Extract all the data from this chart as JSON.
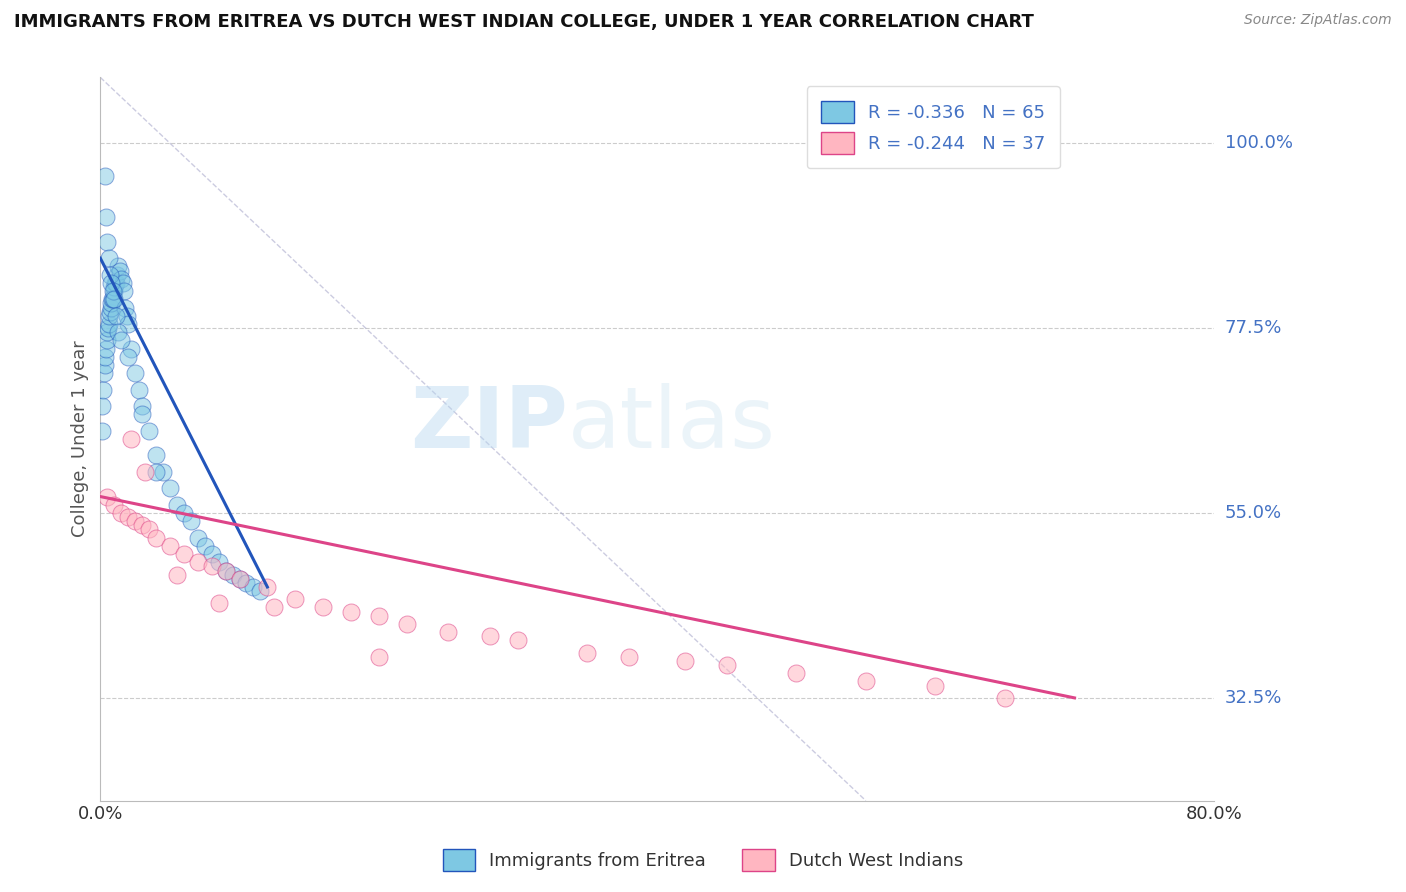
{
  "title": "IMMIGRANTS FROM ERITREA VS DUTCH WEST INDIAN COLLEGE, UNDER 1 YEAR CORRELATION CHART",
  "source_text": "Source: ZipAtlas.com",
  "ylabel": "College, Under 1 year",
  "xlim": [
    0.0,
    80.0
  ],
  "ylim": [
    20.0,
    108.0
  ],
  "ytick_labels": [
    "32.5%",
    "55.0%",
    "77.5%",
    "100.0%"
  ],
  "ytick_values": [
    32.5,
    55.0,
    77.5,
    100.0
  ],
  "legend_label1": "R = -0.336   N = 65",
  "legend_label2": "R = -0.244   N = 37",
  "color_blue": "#7ec8e3",
  "color_pink": "#ffb6c1",
  "color_blue_line": "#2255bb",
  "color_pink_line": "#dd4488",
  "color_dashed": "#aaaacc",
  "watermark_zip": "ZIP",
  "watermark_atlas": "atlas",
  "title_color": "#222222",
  "legend_text_color": "#4472c4",
  "blue_scatter_x": [
    0.1,
    0.15,
    0.2,
    0.25,
    0.3,
    0.35,
    0.4,
    0.45,
    0.5,
    0.55,
    0.6,
    0.65,
    0.7,
    0.75,
    0.8,
    0.85,
    0.9,
    0.95,
    1.0,
    1.05,
    1.1,
    1.2,
    1.3,
    1.4,
    1.5,
    1.6,
    1.7,
    1.8,
    1.9,
    2.0,
    2.2,
    2.5,
    2.8,
    3.0,
    3.5,
    4.0,
    4.5,
    5.0,
    5.5,
    6.0,
    6.5,
    7.0,
    7.5,
    8.0,
    8.5,
    9.0,
    9.5,
    10.0,
    10.5,
    11.0,
    11.5,
    0.3,
    0.4,
    0.5,
    0.6,
    0.7,
    0.8,
    0.9,
    1.0,
    1.1,
    1.3,
    1.5,
    2.0,
    3.0,
    4.0
  ],
  "blue_scatter_y": [
    65.0,
    68.0,
    70.0,
    72.0,
    73.0,
    74.0,
    75.0,
    76.0,
    77.0,
    77.5,
    78.0,
    79.0,
    79.5,
    80.0,
    80.5,
    81.0,
    81.0,
    82.0,
    82.5,
    83.0,
    83.0,
    84.0,
    85.0,
    84.5,
    83.5,
    83.0,
    82.0,
    80.0,
    79.0,
    78.0,
    75.0,
    72.0,
    70.0,
    68.0,
    65.0,
    62.0,
    60.0,
    58.0,
    56.0,
    55.0,
    54.0,
    52.0,
    51.0,
    50.0,
    49.0,
    48.0,
    47.5,
    47.0,
    46.5,
    46.0,
    45.5,
    96.0,
    91.0,
    88.0,
    86.0,
    84.0,
    83.0,
    82.0,
    81.0,
    79.0,
    77.0,
    76.0,
    74.0,
    67.0,
    60.0
  ],
  "pink_scatter_x": [
    0.5,
    1.0,
    1.5,
    2.0,
    2.5,
    3.0,
    3.5,
    4.0,
    5.0,
    6.0,
    7.0,
    8.0,
    9.0,
    10.0,
    12.0,
    14.0,
    16.0,
    18.0,
    20.0,
    22.0,
    25.0,
    28.0,
    30.0,
    35.0,
    38.0,
    42.0,
    45.0,
    50.0,
    55.0,
    60.0,
    65.0,
    2.2,
    3.2,
    5.5,
    8.5,
    12.5,
    20.0
  ],
  "pink_scatter_y": [
    57.0,
    56.0,
    55.0,
    54.5,
    54.0,
    53.5,
    53.0,
    52.0,
    51.0,
    50.0,
    49.0,
    48.5,
    48.0,
    47.0,
    46.0,
    44.5,
    43.5,
    43.0,
    42.5,
    41.5,
    40.5,
    40.0,
    39.5,
    38.0,
    37.5,
    37.0,
    36.5,
    35.5,
    34.5,
    34.0,
    32.5,
    64.0,
    60.0,
    47.5,
    44.0,
    43.5,
    37.5
  ],
  "blue_line_x": [
    0.0,
    12.0
  ],
  "blue_line_y": [
    86.0,
    46.0
  ],
  "pink_line_x": [
    0.0,
    70.0
  ],
  "pink_line_y": [
    57.0,
    32.5
  ],
  "dashed_line_x": [
    0.0,
    55.0
  ],
  "dashed_line_y": [
    108.0,
    20.0
  ],
  "legend_entries": [
    {
      "label": "Immigrants from Eritrea",
      "color": "#7ec8e3"
    },
    {
      "label": "Dutch West Indians",
      "color": "#ffb6c1"
    }
  ]
}
